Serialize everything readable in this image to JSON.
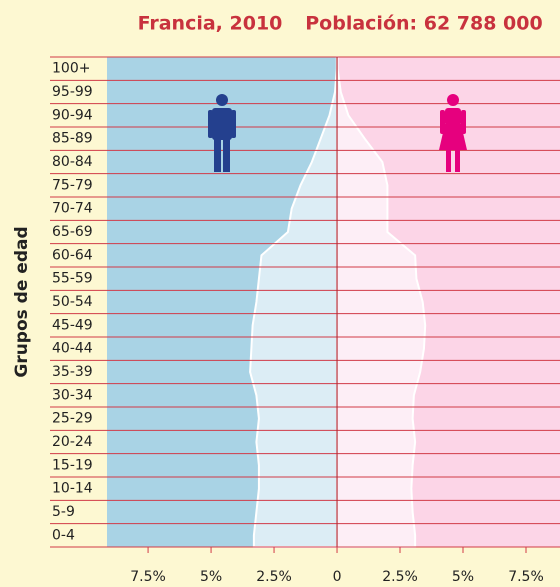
{
  "chart_data": {
    "type": "pyramid",
    "title": "Francia, 2010",
    "subtitle": "Población: 62 788 000",
    "y_label": "Grupos de edad",
    "categories": [
      "0-4",
      "5-9",
      "10-14",
      "15-19",
      "20-24",
      "25-29",
      "30-34",
      "35-39",
      "40-44",
      "45-49",
      "50-54",
      "55-59",
      "60-64",
      "65-69",
      "70-74",
      "75-79",
      "80-84",
      "85-89",
      "90-94",
      "95-99",
      "100+"
    ],
    "series": [
      {
        "color": "#a9d3e5",
        "values": [
          3.3,
          3.2,
          3.1,
          3.1,
          3.2,
          3.1,
          3.2,
          3.45,
          3.4,
          3.35,
          3.2,
          3.1,
          3.0,
          1.95,
          1.8,
          1.45,
          1.0,
          0.65,
          0.3,
          0.08,
          0.01
        ]
      },
      {
        "color": "#fcd5e7",
        "values": [
          3.1,
          3.0,
          2.95,
          3.0,
          3.1,
          3.0,
          3.05,
          3.3,
          3.45,
          3.5,
          3.4,
          3.15,
          3.1,
          2.0,
          2.0,
          2.0,
          1.8,
          1.1,
          0.45,
          0.15,
          0.02
        ]
      }
    ],
    "xlim": [
      -9.13,
      8.85
    ],
    "xticks": [
      {
        "value": -7.5,
        "label": "7.5%"
      },
      {
        "value": -5,
        "label": "5%"
      },
      {
        "value": -2.5,
        "label": "2.5%"
      },
      0,
      {
        "value": 2.5,
        "label": "2.5%"
      },
      {
        "value": 5,
        "label": "5%"
      },
      {
        "value": 7.5,
        "label": "7.5%"
      }
    ],
    "grid": true
  }
}
